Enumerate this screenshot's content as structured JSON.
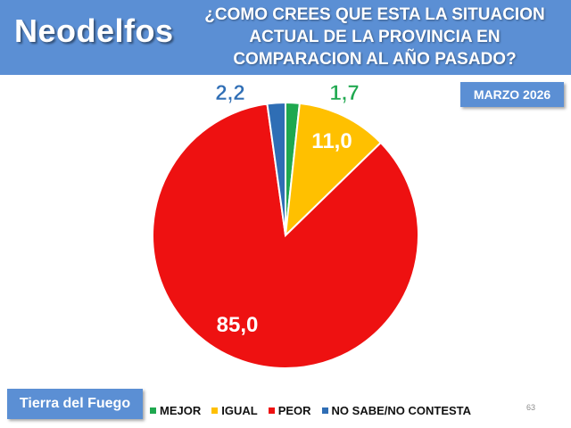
{
  "header": {
    "brand": "Neodelfos",
    "question": "¿COMO CREES QUE ESTA LA SITUACION ACTUAL DE LA PROVINCIA EN COMPARACION AL AÑO PASADO?"
  },
  "date_badge": "MARZO 2026",
  "region_badge": "Tierra del Fuego",
  "page_number": "63",
  "colors": {
    "header_bg": "#5b8fd4",
    "mejor": "#1fa84f",
    "igual": "#ffc000",
    "peor": "#ee1111",
    "ns_nc": "#2f6eb5"
  },
  "chart_data": {
    "type": "pie",
    "start_angle_deg": 0,
    "direction": "clockwise",
    "slices": [
      {
        "label": "MEJOR",
        "value": 1.7,
        "display": "1,7",
        "color": "#1fa84f"
      },
      {
        "label": "IGUAL",
        "value": 11.0,
        "display": "11,0",
        "color": "#ffc000"
      },
      {
        "label": "PEOR",
        "value": 85.0,
        "display": "85,0",
        "color": "#ee1111"
      },
      {
        "label": "NO SABE/NO CONTESTA",
        "value": 2.2,
        "display": "2,2",
        "color": "#2f6eb5"
      }
    ],
    "legend_position": "bottom"
  }
}
